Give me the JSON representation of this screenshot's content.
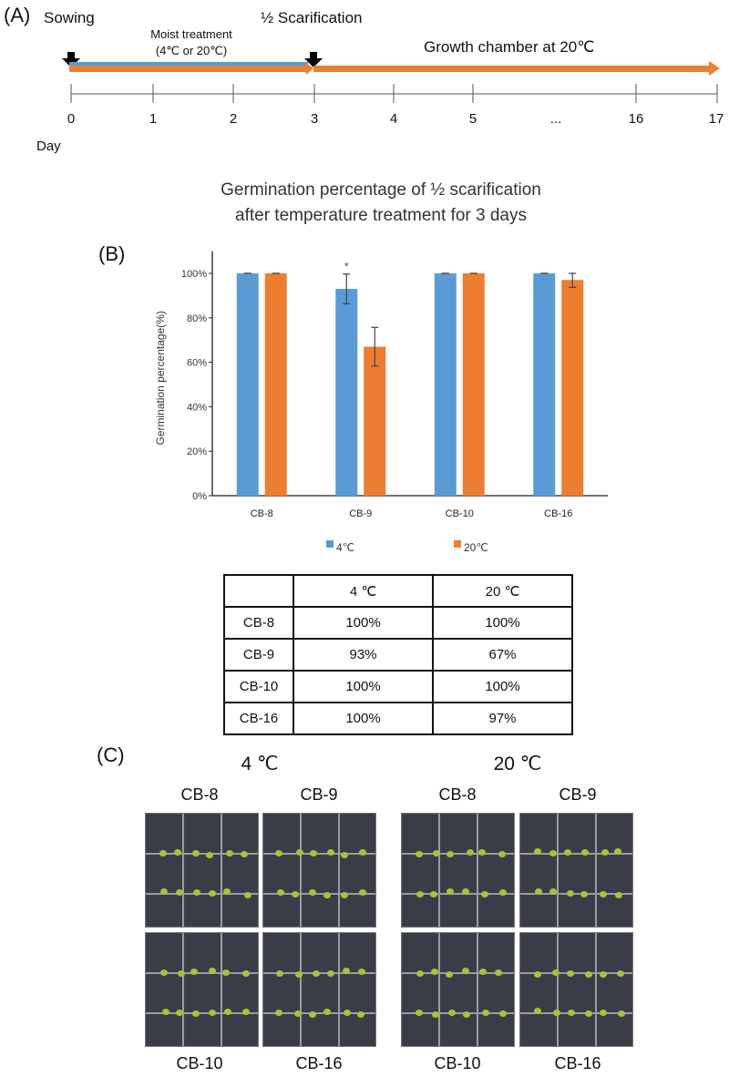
{
  "panel_a": {
    "label": "(A)",
    "sowing": "Sowing",
    "moist_line1": "Moist treatment",
    "moist_line2": "(4℃ or 20℃)",
    "scarification": "½ Scarification",
    "growth": "Growth chamber at 20℃",
    "ticks": [
      "0",
      "1",
      "2",
      "3",
      "4",
      "5",
      "...",
      "16",
      "17"
    ],
    "axis_label": "Day",
    "colors": {
      "blue": "#5b9bd5",
      "orange": "#ed7d31"
    }
  },
  "panel_b": {
    "label": "(B)",
    "title_line1": "Germination percentage of ½ scarification",
    "title_line2": "after temperature treatment for 3 days"
  },
  "chart_data": {
    "type": "bar",
    "title": "Germination percentage of ½ scarification after temperature treatment for 3 days",
    "categories": [
      "CB-8",
      "CB-9",
      "CB-10",
      "CB-16"
    ],
    "series": [
      {
        "name": "4℃",
        "color": "#5b9bd5",
        "values": [
          100,
          93,
          100,
          100
        ],
        "errors": [
          0,
          6.7,
          0,
          0
        ]
      },
      {
        "name": "20℃",
        "color": "#ed7d31",
        "values": [
          100,
          67,
          100,
          97
        ],
        "errors": [
          0,
          8.7,
          0,
          3.3
        ]
      }
    ],
    "ylabel": "Germination percentage(%)",
    "yticks": [
      "0%",
      "20%",
      "40%",
      "60%",
      "80%",
      "100%"
    ],
    "ylim": [
      0,
      110
    ],
    "annotations": [
      {
        "category": "CB-9",
        "series": "4℃",
        "text": "*"
      }
    ],
    "legend": "bottom",
    "grid": false
  },
  "table": {
    "headers": [
      "",
      "4 ℃",
      "20 ℃"
    ],
    "rows": [
      [
        "CB-8",
        "100%",
        "100%"
      ],
      [
        "CB-9",
        "93%",
        "67%"
      ],
      [
        "CB-10",
        "100%",
        "100%"
      ],
      [
        "CB-16",
        "100%",
        "97%"
      ]
    ]
  },
  "panel_c": {
    "label": "(C)",
    "groups": [
      {
        "title": "4 ℃",
        "top": [
          "CB-8",
          "CB-9"
        ],
        "bottom": [
          "CB-10",
          "CB-16"
        ]
      },
      {
        "title": "20 ℃",
        "top": [
          "CB-8",
          "CB-9"
        ],
        "bottom": [
          "CB-10",
          "CB-16"
        ]
      }
    ]
  }
}
